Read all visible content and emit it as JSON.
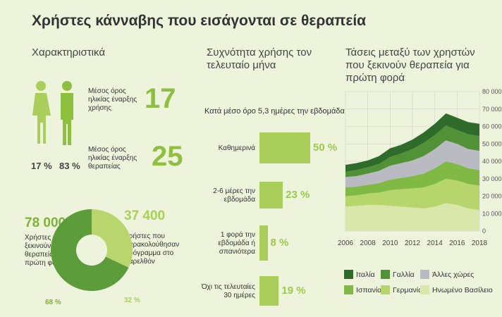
{
  "title": "Χρήστες κάνναβης που εισάγονται σε θεραπεία",
  "characteristics": {
    "heading": "Χαρακτηριστικά",
    "gender": {
      "values": [
        17,
        83
      ],
      "value_labels": [
        "17 %",
        "83 %"
      ]
    },
    "ages": [
      {
        "label": "Μέσος όρος ηλικίας έναρξης χρήσης",
        "value": 17
      },
      {
        "label": "Μέσος όρος ηλικίας έναρξης θεραπείας",
        "value": 25
      }
    ]
  },
  "chart_data": [
    {
      "type": "pie",
      "categories": [
        "Χρήστες που ξεκινούν θεραπεία για πρώτη φορά",
        "Χρήστες που παρακολούθησαν πρόγραμμα στο παρελθόν"
      ],
      "counts": [
        {
          "value": 78000,
          "label": "78 000"
        },
        {
          "value": 37400,
          "label": "37 400"
        }
      ],
      "values": [
        68,
        32
      ],
      "value_labels": [
        "68 %",
        "32 %"
      ],
      "colors": [
        "#5c9c3a",
        "#b9d66e"
      ]
    },
    {
      "type": "bar",
      "title": "Συχνότητα χρήσης τον τελευταίο μήνα",
      "subtitle": "Κατά μέσο όρο 5,3 ημέρες την εβδομάδα",
      "categories": [
        "Καθημερινά",
        "2-6 μέρες την εβδομάδα",
        "1 φορά την εβδομάδα ή σπανιότερα",
        "Όχι τις τελευταίες 30 ημέρες"
      ],
      "values": [
        50,
        23,
        8,
        19
      ],
      "value_labels": [
        "50 %",
        "23 %",
        "8 %",
        "19 %"
      ],
      "color": "#a9cf5a"
    },
    {
      "type": "area",
      "stacked": true,
      "title": "Τάσεις μεταξύ των χρηστών που ξεκινούν θεραπεία για πρώτη φορά",
      "x": [
        2006,
        2007,
        2008,
        2009,
        2010,
        2011,
        2012,
        2013,
        2014,
        2015,
        2016,
        2017,
        2018
      ],
      "xlim": [
        2006,
        2018
      ],
      "xticks": [
        2006,
        2008,
        2010,
        2012,
        2014,
        2016,
        2018
      ],
      "ylim": [
        0,
        80000
      ],
      "yticks": [
        0,
        {
          "value": 10000,
          "label": "10 000"
        },
        {
          "value": 20000,
          "label": "20 000"
        },
        {
          "value": 30000,
          "label": "30 000"
        },
        {
          "value": 40000,
          "label": "40 000"
        },
        {
          "value": 50000,
          "label": "50 000"
        },
        {
          "value": 60000,
          "label": "60 000"
        },
        {
          "value": 70000,
          "label": "70 000"
        },
        {
          "value": 80000,
          "label": "80 000"
        }
      ],
      "grid": true,
      "series": [
        {
          "name": "Ηνωμένο Βασίλειο",
          "color": "#d9e7ab",
          "values": [
            14000,
            14500,
            15000,
            15000,
            14500,
            14000,
            13500,
            13000,
            14000,
            16000,
            15000,
            13000,
            12000
          ]
        },
        {
          "name": "Γερμανία",
          "color": "#b6d56c",
          "values": [
            6000,
            6000,
            6500,
            7000,
            9000,
            10000,
            11000,
            12000,
            13000,
            14000,
            14000,
            14000,
            14000
          ]
        },
        {
          "name": "Ισπανία",
          "color": "#80b944",
          "values": [
            5000,
            5000,
            5000,
            5500,
            6000,
            6500,
            7000,
            8000,
            9000,
            10000,
            9500,
            9000,
            9000
          ]
        },
        {
          "name": "Άλλες χώρες",
          "color": "#babbc2",
          "values": [
            6000,
            6000,
            6500,
            7000,
            8000,
            8500,
            9000,
            10000,
            11000,
            12000,
            11500,
            11000,
            11000
          ]
        },
        {
          "name": "Γαλλία",
          "color": "#519237",
          "values": [
            3000,
            3500,
            3500,
            4000,
            5000,
            5500,
            6500,
            7500,
            8000,
            8500,
            8000,
            8500,
            8500
          ]
        },
        {
          "name": "Ιταλία",
          "color": "#2f6c2b",
          "values": [
            4000,
            4000,
            4000,
            4500,
            5000,
            5000,
            5500,
            6000,
            6500,
            7000,
            7000,
            7000,
            7000
          ]
        }
      ]
    }
  ]
}
